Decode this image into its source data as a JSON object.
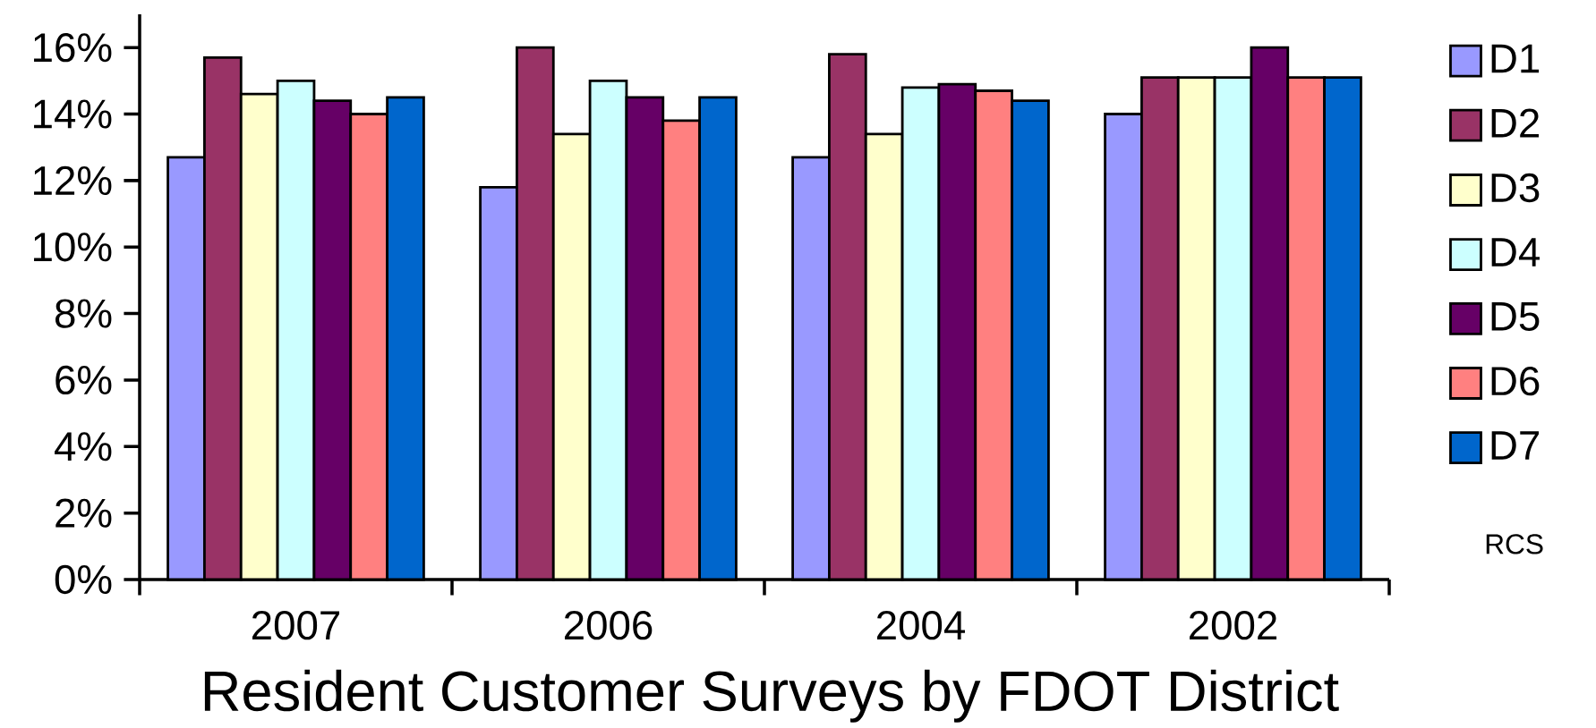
{
  "chart_data": {
    "type": "bar",
    "title": "Resident Customer Surveys by FDOT District",
    "categories": [
      "2007",
      "2006",
      "2004",
      "2002"
    ],
    "series": [
      {
        "name": "D1",
        "color": "#9999ff",
        "values": [
          12.7,
          11.8,
          12.7,
          14.0
        ]
      },
      {
        "name": "D2",
        "color": "#993366",
        "values": [
          15.7,
          16.0,
          15.8,
          15.1
        ]
      },
      {
        "name": "D3",
        "color": "#ffffcc",
        "values": [
          14.6,
          13.4,
          13.4,
          15.1
        ]
      },
      {
        "name": "D4",
        "color": "#ccffff",
        "values": [
          15.0,
          15.0,
          14.8,
          15.1
        ]
      },
      {
        "name": "D5",
        "color": "#660066",
        "values": [
          14.4,
          14.5,
          14.9,
          16.0
        ]
      },
      {
        "name": "D6",
        "color": "#ff8080",
        "values": [
          14.0,
          13.8,
          14.7,
          15.1
        ]
      },
      {
        "name": "D7",
        "color": "#0066cc",
        "values": [
          14.5,
          14.5,
          14.4,
          15.1
        ]
      }
    ],
    "ylim": [
      0,
      17
    ],
    "yticks": [
      {
        "value": 0,
        "label": "0%"
      },
      {
        "value": 2,
        "label": "2%"
      },
      {
        "value": 4,
        "label": "4%"
      },
      {
        "value": 6,
        "label": "6%"
      },
      {
        "value": 8,
        "label": "8%"
      },
      {
        "value": 10,
        "label": "10%"
      },
      {
        "value": 12,
        "label": "12%"
      },
      {
        "value": 14,
        "label": "14%"
      },
      {
        "value": 16,
        "label": "16%"
      }
    ],
    "legend": "right",
    "annotations": [
      "RCS"
    ]
  }
}
